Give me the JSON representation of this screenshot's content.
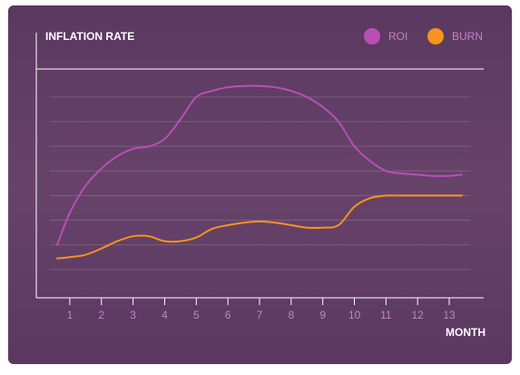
{
  "chart_data": {
    "type": "line",
    "title": "INFLATION RATE",
    "x_label": "MONTH",
    "x": [
      0.6,
      1,
      1.5,
      2,
      2.5,
      3,
      3.5,
      4,
      4.5,
      5,
      5.5,
      6,
      6.5,
      7,
      7.5,
      8,
      8.5,
      9,
      9.5,
      10,
      10.5,
      11,
      11.5,
      12,
      12.5,
      13,
      13.4
    ],
    "series": [
      {
        "name": "ROI",
        "color": "#b84fb4",
        "values": [
          2.0,
          3.3,
          4.4,
          5.1,
          5.6,
          5.9,
          6.0,
          6.3,
          7.1,
          8.0,
          8.25,
          8.4,
          8.45,
          8.45,
          8.4,
          8.25,
          8.0,
          7.6,
          7.0,
          6.0,
          5.4,
          5.0,
          4.9,
          4.85,
          4.8,
          4.8,
          4.85
        ]
      },
      {
        "name": "BURN",
        "color": "#f7941d",
        "values": [
          1.45,
          1.5,
          1.6,
          1.85,
          2.15,
          2.35,
          2.35,
          2.15,
          2.15,
          2.3,
          2.65,
          2.8,
          2.9,
          2.95,
          2.9,
          2.8,
          2.7,
          2.7,
          2.8,
          3.55,
          3.9,
          4.0,
          4.0,
          4.0,
          4.0,
          4.0,
          4.0
        ]
      }
    ],
    "xlim": [
      -0.06,
      14.09
    ],
    "xticks": [
      1,
      2,
      3,
      4,
      5,
      6,
      7,
      8,
      9,
      10,
      11,
      12,
      13
    ],
    "ylim": [
      -0.15,
      9.14
    ],
    "yticks": [
      1,
      2,
      3,
      4,
      5,
      6,
      7,
      8
    ],
    "grid": true,
    "legend": "top-right"
  }
}
